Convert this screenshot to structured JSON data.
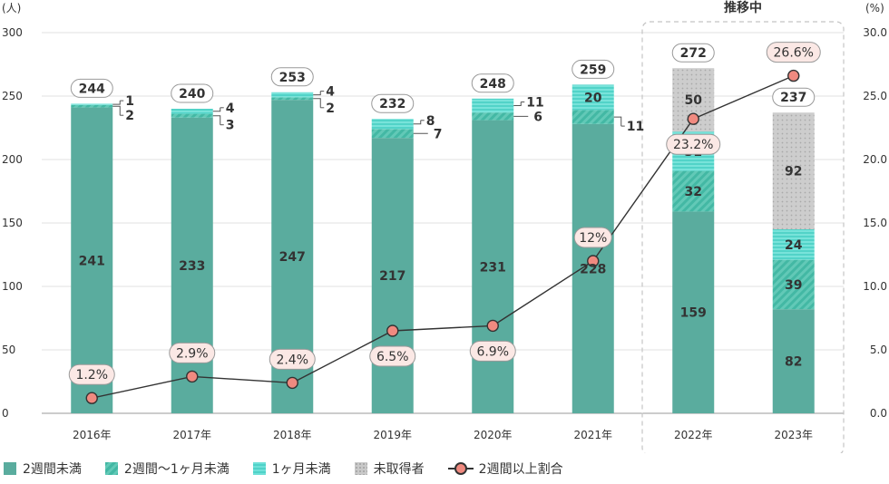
{
  "chart_data": {
    "type": "bar",
    "categories": [
      "2016年",
      "2017年",
      "2018年",
      "2019年",
      "2020年",
      "2021年",
      "2022年",
      "2023年"
    ],
    "y_unit_left": "(人)",
    "y_unit_right": "(%)",
    "ylim": [
      0,
      300
    ],
    "ylim_right": [
      0,
      30
    ],
    "yticks": [
      "0",
      "50",
      "100",
      "150",
      "200",
      "250",
      "300"
    ],
    "yticks_right": [
      "0.0",
      "5.0",
      "10.0",
      "15.0",
      "20.0",
      "25.0",
      "30.0"
    ],
    "highlight_label": "推移中",
    "highlight_categories": [
      "2022年",
      "2023年"
    ],
    "totals": [
      244,
      240,
      253,
      232,
      248,
      259,
      272,
      237
    ],
    "series": [
      {
        "name": "2週間未満",
        "values": [
          241,
          233,
          247,
          217,
          231,
          228,
          159,
          82
        ],
        "color": "#5aac9e"
      },
      {
        "name": "2週間〜1ヶ月未満",
        "values": [
          2,
          3,
          2,
          7,
          6,
          11,
          32,
          39
        ],
        "color": "#43b8a4"
      },
      {
        "name": "1ヶ月未満",
        "values": [
          1,
          4,
          4,
          8,
          11,
          20,
          31,
          24
        ],
        "color": "#6fe0d8"
      },
      {
        "name": "未取得者",
        "values": [
          0,
          0,
          0,
          0,
          0,
          0,
          50,
          92
        ],
        "color": "#c9c9c9"
      }
    ],
    "line": {
      "name": "2週間以上割合",
      "values": [
        1.2,
        2.9,
        2.4,
        6.5,
        6.9,
        12,
        23.2,
        26.6
      ],
      "labels": [
        "1.2%",
        "2.9%",
        "2.4%",
        "6.5%",
        "6.9%",
        "12%",
        "23.2%",
        "26.6%"
      ],
      "color": "#f08a80"
    },
    "grid": true,
    "legend_position": "bottom-left"
  }
}
